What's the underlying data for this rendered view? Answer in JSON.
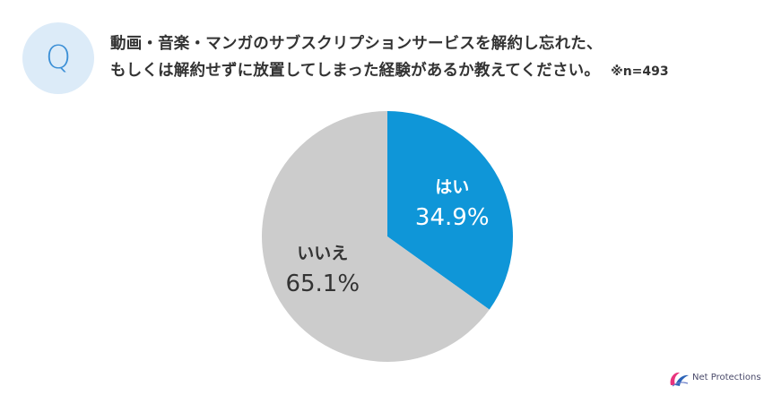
{
  "question": {
    "badge_letter": "Q",
    "line1": "動画・音楽・マンガのサブスクリプションサービスを解約し忘れた、",
    "line2": "もしくは解約せずに放置してしまった経験があるか教えてください。",
    "note": "※n=493"
  },
  "chart_data": {
    "type": "pie",
    "title": "動画・音楽・マンガのサブスクリプションサービスを解約し忘れた、もしくは解約せずに放置してしまった経験があるか教えてください。",
    "note": "※n=493",
    "labels": [
      "はい",
      "いいえ"
    ],
    "values": [
      34.9,
      65.1
    ],
    "display_values": [
      "34.9%",
      "65.1%"
    ],
    "colors": [
      "#0f96d8",
      "#cccccc"
    ],
    "label_colors": [
      "#ffffff",
      "#333333"
    ],
    "start_angle_deg": 0,
    "direction": "clockwise"
  },
  "logo": {
    "text": "Net Protections"
  }
}
